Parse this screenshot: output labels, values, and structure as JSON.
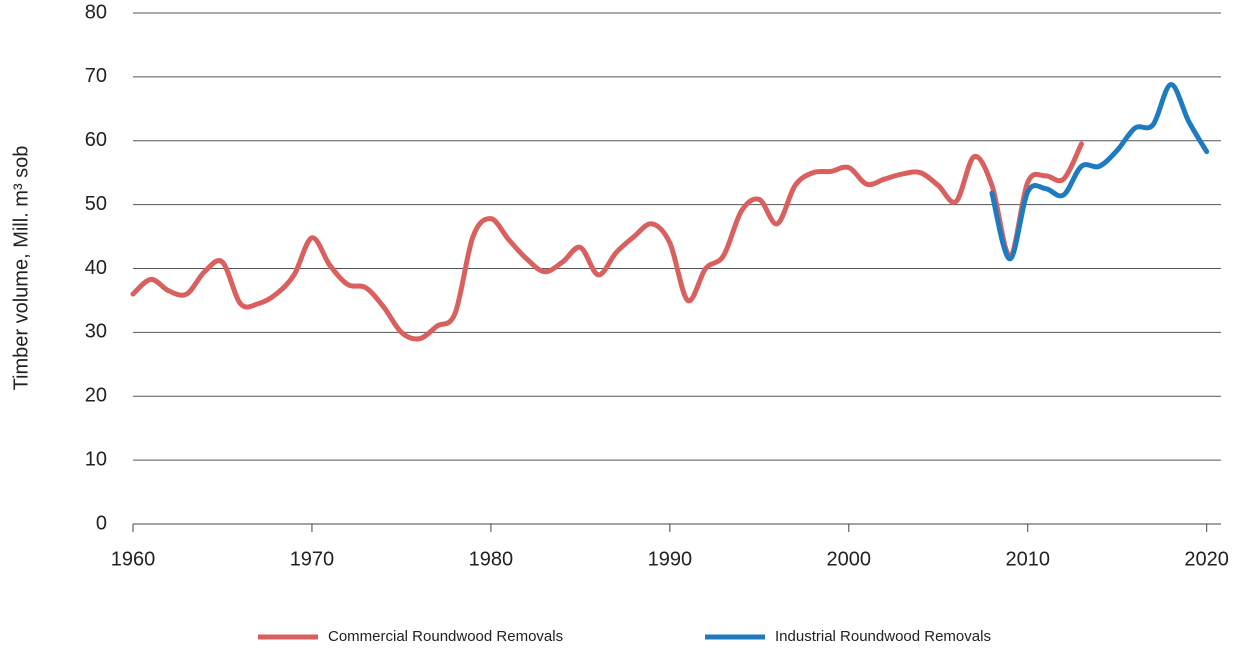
{
  "chart_data": {
    "type": "line",
    "y_label": "Timber volume, Mill. m³ sob",
    "x": [
      1960,
      1961,
      1962,
      1963,
      1964,
      1965,
      1966,
      1967,
      1968,
      1969,
      1970,
      1971,
      1972,
      1973,
      1974,
      1975,
      1976,
      1977,
      1978,
      1979,
      1980,
      1981,
      1982,
      1983,
      1984,
      1985,
      1986,
      1987,
      1988,
      1989,
      1990,
      1991,
      1992,
      1993,
      1994,
      1995,
      1996,
      1997,
      1998,
      1999,
      2000,
      2001,
      2002,
      2003,
      2004,
      2005,
      2006,
      2007,
      2008,
      2009,
      2010,
      2011,
      2012,
      2013,
      2014,
      2015,
      2016,
      2017,
      2018,
      2019,
      2020
    ],
    "series": [
      {
        "name": "Commercial Roundwood Removals",
        "color": "#d9605e",
        "values": [
          36,
          38.3,
          36.5,
          36,
          39.5,
          41,
          34.5,
          34.5,
          36,
          39,
          44.8,
          40.5,
          37.5,
          37,
          34,
          30,
          29,
          31,
          33,
          45,
          47.8,
          44.5,
          41.5,
          39.5,
          41,
          43.3,
          39,
          42.5,
          45,
          47,
          44,
          35,
          40,
          42,
          49,
          50.8,
          47,
          53,
          55,
          55.2,
          55.8,
          53.2,
          54,
          54.8,
          55,
          53,
          50.5,
          57.5,
          53,
          42,
          53.5,
          54.5,
          54,
          59.5,
          null,
          null,
          null,
          null,
          null,
          null,
          null
        ]
      },
      {
        "name": "Industrial Roundwood Removals",
        "color": "#1f7bc0",
        "values": [
          null,
          null,
          null,
          null,
          null,
          null,
          null,
          null,
          null,
          null,
          null,
          null,
          null,
          null,
          null,
          null,
          null,
          null,
          null,
          null,
          null,
          null,
          null,
          null,
          null,
          null,
          null,
          null,
          null,
          null,
          null,
          null,
          null,
          null,
          null,
          null,
          null,
          null,
          null,
          null,
          null,
          null,
          null,
          null,
          null,
          null,
          null,
          null,
          51.8,
          41.5,
          52,
          52.5,
          51.5,
          56,
          56,
          58.5,
          62,
          62.5,
          68.8,
          63,
          58.3
        ]
      }
    ],
    "xlim": [
      1960,
      2020.8
    ],
    "xticks": [
      1960,
      1970,
      1980,
      1990,
      2000,
      2010,
      2020
    ],
    "ylim": [
      0,
      80
    ],
    "yticks": [
      0,
      10,
      20,
      30,
      40,
      50,
      60,
      70,
      80
    ],
    "grid": true,
    "legend": "bottom"
  }
}
